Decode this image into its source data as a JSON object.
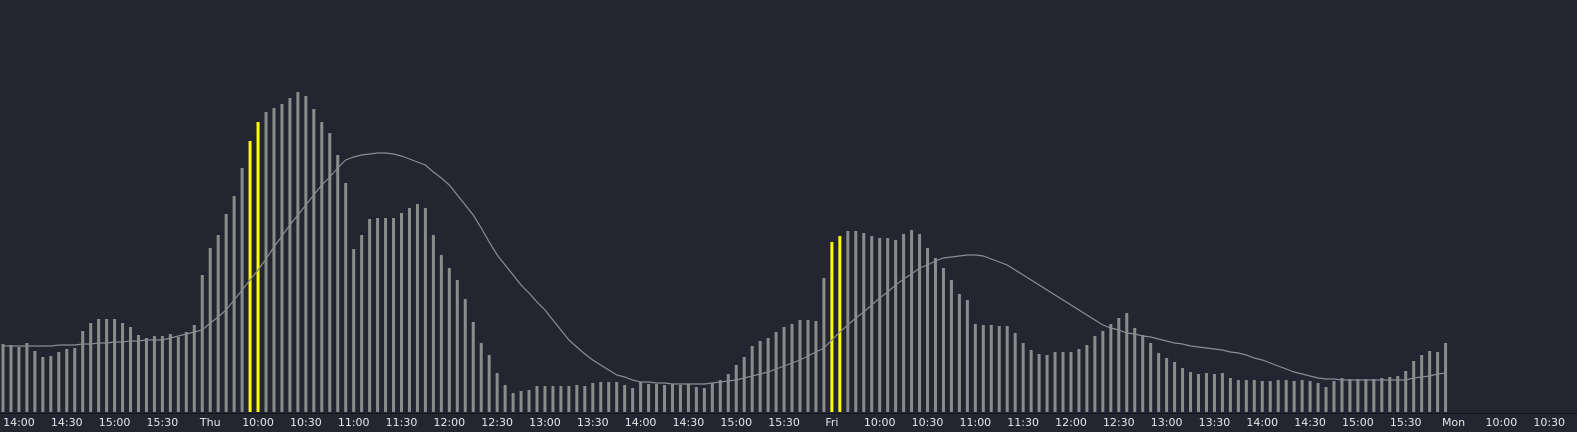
{
  "chart_data": {
    "type": "bar",
    "background": "#232531",
    "categories": [
      null,
      null,
      "14:00",
      null,
      null,
      null,
      null,
      null,
      "14:30",
      null,
      null,
      null,
      null,
      null,
      "15:00",
      null,
      null,
      null,
      null,
      null,
      "15:30",
      null,
      null,
      null,
      null,
      null,
      "Thu",
      null,
      null,
      null,
      null,
      null,
      "10:00",
      null,
      null,
      null,
      null,
      null,
      "10:30",
      null,
      null,
      null,
      null,
      null,
      "11:00",
      null,
      null,
      null,
      null,
      null,
      "11:30",
      null,
      null,
      null,
      null,
      null,
      "12:00",
      null,
      null,
      null,
      null,
      null,
      "12:30",
      null,
      null,
      null,
      null,
      null,
      "13:00",
      null,
      null,
      null,
      null,
      null,
      "13:30",
      null,
      null,
      null,
      null,
      null,
      "14:00",
      null,
      null,
      null,
      null,
      null,
      "14:30",
      null,
      null,
      null,
      null,
      null,
      "15:00",
      null,
      null,
      null,
      null,
      null,
      "15:30",
      null,
      null,
      null,
      null,
      null,
      "Fri",
      null,
      null,
      null,
      null,
      null,
      "10:00",
      null,
      null,
      null,
      null,
      null,
      "10:30",
      null,
      null,
      null,
      null,
      null,
      "11:00",
      null,
      null,
      null,
      null,
      null,
      "11:30",
      null,
      null,
      null,
      null,
      null,
      "12:00",
      null,
      null,
      null,
      null,
      null,
      "12:30",
      null,
      null,
      null,
      null,
      null,
      "13:00",
      null,
      null,
      null,
      null,
      null,
      "13:30",
      null,
      null,
      null,
      null,
      null,
      "14:00",
      null,
      null,
      null,
      null,
      null,
      "14:30",
      null,
      null,
      null,
      null,
      null,
      "15:00",
      null,
      null,
      null,
      null,
      null,
      "15:30",
      null,
      null,
      null,
      null,
      null,
      "Mon",
      null,
      null,
      null,
      null,
      null,
      "10:00",
      null,
      null,
      null,
      null,
      null,
      "10:30",
      null,
      null
    ],
    "ylim": [
      0,
      330
    ],
    "highlight_color": "#ffff00",
    "highlighted": [
      31,
      32,
      104,
      105
    ],
    "series": [
      {
        "color": "#8c8c8c",
        "values": [
          68,
          67,
          65,
          69,
          61,
          55,
          56,
          60,
          63,
          64,
          81,
          89,
          93,
          93,
          93,
          89,
          85,
          77,
          74,
          76,
          76,
          78,
          75,
          80,
          87,
          137,
          164,
          177,
          198,
          216,
          244,
          271,
          290,
          300,
          304,
          308,
          314,
          320,
          316,
          303,
          290,
          279,
          257,
          229,
          163,
          177,
          193,
          194,
          194,
          194,
          199,
          204,
          208,
          204,
          177,
          157,
          144,
          132,
          113,
          90,
          69,
          57,
          39,
          27,
          19,
          21,
          22,
          26,
          26,
          26,
          26,
          26,
          27,
          26,
          29,
          30,
          30,
          30,
          27,
          24,
          30,
          28,
          28,
          27,
          28,
          27,
          28,
          25,
          24,
          29,
          32,
          38,
          47,
          55,
          66,
          71,
          74,
          80,
          85,
          88,
          92,
          92,
          91,
          134,
          170,
          176,
          181,
          181,
          179,
          176,
          174,
          174,
          172,
          178,
          182,
          178,
          164,
          154,
          144,
          132,
          118,
          112,
          88,
          87,
          87,
          86,
          86,
          79,
          69,
          62,
          58,
          57,
          60,
          60,
          60,
          63,
          67,
          76,
          81,
          88,
          94,
          99,
          84,
          77,
          69,
          59,
          54,
          50,
          44,
          40,
          38,
          39,
          38,
          39,
          34,
          32,
          32,
          32,
          31,
          31,
          32,
          32,
          31,
          32,
          31,
          29,
          25,
          31,
          34,
          33,
          33,
          33,
          33,
          34,
          35,
          36,
          41,
          51,
          57,
          61,
          60,
          69,
          null,
          null,
          null,
          null,
          null,
          null,
          null,
          null,
          null,
          null,
          null,
          null,
          null,
          null,
          null
        ]
      },
      {
        "type": "line",
        "color": "#8a8c94",
        "values": [
          66,
          66,
          66,
          66,
          66,
          66,
          66,
          67,
          67,
          67,
          68,
          68,
          69,
          69,
          70,
          70,
          71,
          71,
          72,
          72,
          72,
          74,
          76,
          78,
          80,
          82,
          89,
          95,
          102,
          112,
          122,
          132,
          142,
          153,
          165,
          176,
          187,
          197,
          207,
          217,
          227,
          235,
          244,
          252,
          255,
          257,
          258,
          259,
          259,
          258,
          256,
          253,
          250,
          247,
          240,
          234,
          227,
          217,
          207,
          197,
          184,
          170,
          157,
          147,
          137,
          127,
          119,
          110,
          102,
          92,
          82,
          72,
          65,
          58,
          52,
          47,
          42,
          37,
          35,
          32,
          30,
          30,
          29,
          29,
          28,
          28,
          28,
          28,
          28,
          29,
          30,
          31,
          32,
          34,
          36,
          38,
          40,
          43,
          46,
          49,
          52,
          56,
          60,
          64,
          72,
          80,
          87,
          94,
          100,
          107,
          114,
          120,
          127,
          133,
          138,
          144,
          147,
          151,
          154,
          155,
          156,
          157,
          157,
          156,
          153,
          150,
          147,
          142,
          137,
          132,
          127,
          122,
          117,
          112,
          107,
          102,
          97,
          92,
          87,
          84,
          82,
          79,
          78,
          76,
          75,
          73,
          71,
          69,
          68,
          66,
          65,
          64,
          63,
          62,
          60,
          59,
          57,
          54,
          52,
          49,
          46,
          43,
          40,
          38,
          36,
          34,
          33,
          33,
          32,
          32,
          32,
          32,
          32,
          32,
          32,
          32,
          32,
          34,
          35,
          36,
          38,
          39,
          null,
          null,
          null,
          null,
          null,
          null,
          null,
          null,
          null,
          null,
          null,
          null,
          null,
          null,
          null
        ]
      }
    ]
  }
}
